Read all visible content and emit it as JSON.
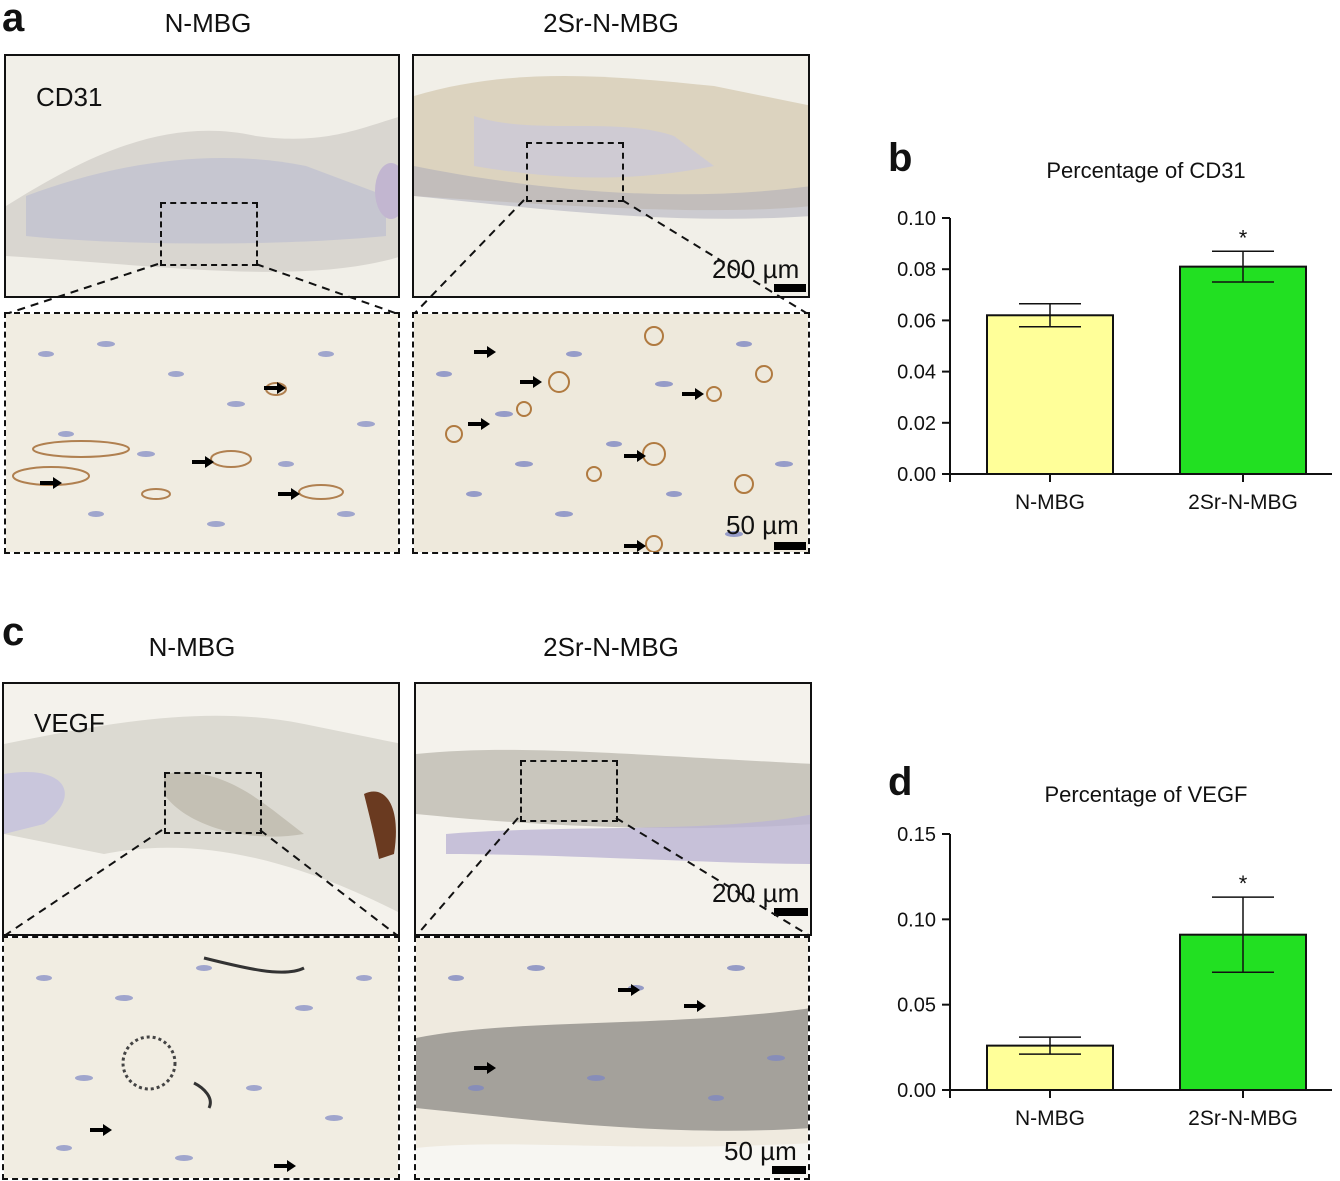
{
  "panels": {
    "a": {
      "letter": "a",
      "titles": [
        "N-MBG",
        "2Sr-N-MBG"
      ],
      "stain": "CD31",
      "scale_low": "200 µm",
      "scale_high": "50 µm"
    },
    "c": {
      "letter": "c",
      "titles": [
        "N-MBG",
        "2Sr-N-MBG"
      ],
      "stain": "VEGF",
      "scale_low": "200 µm",
      "scale_high": "50 µm"
    },
    "b": {
      "letter": "b"
    },
    "d": {
      "letter": "d"
    }
  },
  "colors": {
    "n_mbg_bar": "#ffff99",
    "sr_bar": "#22e022",
    "tissue_bg": "#f1efe8",
    "nuclei": "#7f88c0",
    "vessel": "#c8a070"
  },
  "chart_data": [
    {
      "type": "bar",
      "title": "Percentage of CD31",
      "categories": [
        "N-MBG",
        "2Sr-N-MBG"
      ],
      "values": [
        0.062,
        0.081
      ],
      "errors": [
        0.0045,
        0.006
      ],
      "significance": [
        "",
        "*"
      ],
      "ylim": [
        0,
        0.1
      ],
      "yticks": [
        "0.00",
        "0.02",
        "0.04",
        "0.06",
        "0.08",
        "0.10"
      ],
      "ytick_values": [
        0,
        0.02,
        0.04,
        0.06,
        0.08,
        0.1
      ],
      "xlabel": "",
      "ylabel": ""
    },
    {
      "type": "bar",
      "title": "Percentage of VEGF",
      "categories": [
        "N-MBG",
        "2Sr-N-MBG"
      ],
      "values": [
        0.026,
        0.091
      ],
      "errors": [
        0.005,
        0.022
      ],
      "significance": [
        "",
        "*"
      ],
      "ylim": [
        0,
        0.15
      ],
      "yticks": [
        "0.00",
        "0.05",
        "0.10",
        "0.15"
      ],
      "ytick_values": [
        0,
        0.05,
        0.1,
        0.15
      ],
      "xlabel": "",
      "ylabel": ""
    }
  ]
}
